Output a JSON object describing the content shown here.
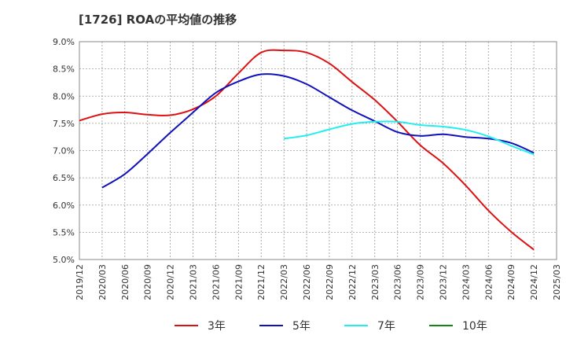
{
  "chart_data": {
    "type": "line",
    "title": "[1726]  ROAの平均値の推移",
    "x": [
      "2019/12",
      "2020/03",
      "2020/06",
      "2020/09",
      "2020/12",
      "2021/03",
      "2021/06",
      "2021/09",
      "2021/12",
      "2022/03",
      "2022/06",
      "2022/09",
      "2022/12",
      "2023/03",
      "2023/06",
      "2023/09",
      "2023/12",
      "2024/03",
      "2024/06",
      "2024/09",
      "2024/12",
      "2025/03"
    ],
    "ylim": [
      5.0,
      9.0
    ],
    "yticks": [
      "5.0%",
      "5.5%",
      "6.0%",
      "6.5%",
      "7.0%",
      "7.5%",
      "8.0%",
      "8.5%",
      "9.0%"
    ],
    "ytick_values": [
      5.0,
      5.5,
      6.0,
      6.5,
      7.0,
      7.5,
      8.0,
      8.5,
      9.0
    ],
    "grid": true,
    "legend_position": "bottom",
    "series": [
      {
        "name": "3年",
        "color": "#dd1111",
        "values": [
          7.55,
          7.67,
          7.7,
          7.66,
          7.65,
          7.76,
          8.0,
          8.42,
          8.8,
          8.84,
          8.8,
          8.6,
          8.26,
          7.93,
          7.53,
          7.1,
          6.77,
          6.36,
          5.9,
          5.51,
          5.18,
          null
        ]
      },
      {
        "name": "5年",
        "color": "#1111bb",
        "values": [
          null,
          6.32,
          6.57,
          6.94,
          7.33,
          7.7,
          8.06,
          8.27,
          8.4,
          8.37,
          8.22,
          7.98,
          7.74,
          7.54,
          7.34,
          7.27,
          7.3,
          7.25,
          7.22,
          7.14,
          6.96,
          null
        ]
      },
      {
        "name": "7年",
        "color": "#22eeee",
        "values": [
          null,
          null,
          null,
          null,
          null,
          null,
          null,
          null,
          null,
          7.22,
          7.28,
          7.39,
          7.49,
          7.53,
          7.53,
          7.47,
          7.44,
          7.38,
          7.26,
          7.09,
          6.93,
          null
        ]
      },
      {
        "name": "10年",
        "color": "#118811",
        "values": [
          null,
          null,
          null,
          null,
          null,
          null,
          null,
          null,
          null,
          null,
          null,
          null,
          null,
          null,
          null,
          null,
          null,
          null,
          null,
          null,
          null,
          null
        ]
      }
    ]
  }
}
